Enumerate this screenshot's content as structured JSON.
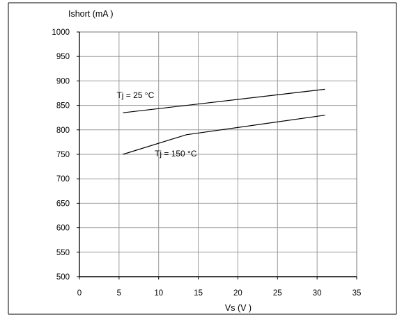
{
  "chart_data": {
    "type": "line",
    "title": "",
    "xlabel": "Vs (V )",
    "ylabel": "Ishort (mA )",
    "xlim": [
      0,
      35
    ],
    "ylim": [
      500,
      1000
    ],
    "xticks": [
      0,
      5,
      10,
      15,
      20,
      25,
      30,
      35
    ],
    "yticks": [
      500,
      550,
      600,
      650,
      700,
      750,
      800,
      850,
      900,
      950,
      1000
    ],
    "grid": true,
    "series": [
      {
        "name": "Tj =  25 °C",
        "points": [
          [
            5.5,
            835
          ],
          [
            31,
            883
          ]
        ],
        "label_at": [
          4.7,
          865
        ]
      },
      {
        "name": "Tj = 150 °C",
        "points": [
          [
            5.5,
            750
          ],
          [
            13.5,
            790
          ],
          [
            31,
            830
          ]
        ],
        "label_at": [
          9.5,
          746
        ]
      }
    ]
  }
}
